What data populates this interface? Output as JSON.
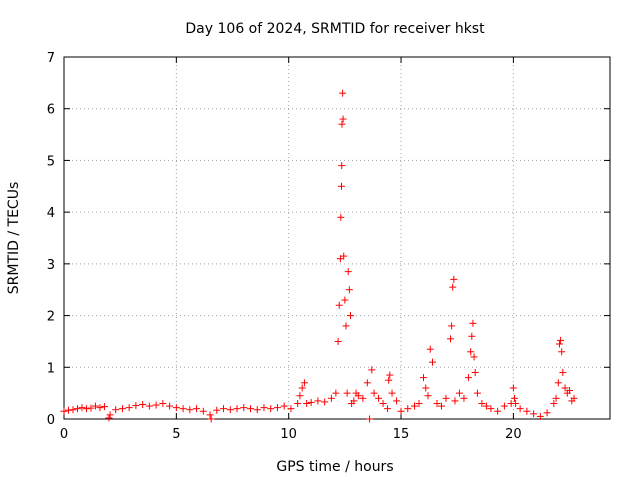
{
  "chart_data": {
    "type": "scatter",
    "title": "Day 106 of 2024, SRMTID for receiver hkst",
    "xlabel": "GPS time / hours",
    "ylabel": "SRMTID / TECUs",
    "xlim": [
      0,
      24.3
    ],
    "ylim": [
      0,
      7
    ],
    "xticks": [
      0,
      5,
      10,
      15,
      20
    ],
    "yticks": [
      0,
      1,
      2,
      3,
      4,
      5,
      6,
      7
    ],
    "grid": true,
    "marker": "+",
    "color": "#ff0000",
    "series": [
      {
        "name": "SRMTID",
        "x": [
          0.0,
          0.2,
          0.4,
          0.6,
          0.8,
          1.0,
          1.2,
          1.4,
          1.6,
          1.8,
          2.0,
          2.05,
          2.3,
          2.6,
          2.9,
          3.2,
          3.5,
          3.8,
          4.1,
          4.4,
          4.7,
          5.0,
          5.3,
          5.6,
          5.9,
          6.2,
          6.5,
          6.55,
          6.8,
          7.1,
          7.4,
          7.7,
          8.0,
          8.3,
          8.6,
          8.9,
          9.2,
          9.5,
          9.8,
          10.1,
          10.4,
          10.5,
          10.6,
          10.7,
          10.8,
          11.0,
          11.3,
          11.6,
          11.9,
          12.1,
          12.2,
          12.25,
          12.3,
          12.32,
          12.35,
          12.36,
          12.37,
          12.4,
          12.42,
          12.45,
          12.5,
          12.55,
          12.6,
          12.65,
          12.7,
          12.75,
          12.8,
          12.9,
          13.0,
          13.1,
          13.3,
          13.5,
          13.6,
          13.7,
          13.8,
          14.0,
          14.2,
          14.4,
          14.45,
          14.5,
          14.6,
          14.8,
          15.0,
          15.3,
          15.6,
          15.8,
          16.0,
          16.1,
          16.2,
          16.3,
          16.4,
          16.6,
          16.8,
          17.0,
          17.2,
          17.25,
          17.3,
          17.35,
          17.4,
          17.6,
          17.8,
          18.0,
          18.1,
          18.15,
          18.2,
          18.25,
          18.3,
          18.4,
          18.6,
          18.8,
          19.0,
          19.3,
          19.6,
          19.9,
          20.0,
          20.05,
          20.1,
          20.3,
          20.6,
          20.9,
          21.2,
          21.5,
          21.8,
          21.9,
          22.0,
          22.05,
          22.1,
          22.15,
          22.2,
          22.3,
          22.4,
          22.5,
          22.6,
          22.7
        ],
        "y": [
          0.15,
          0.17,
          0.18,
          0.2,
          0.22,
          0.2,
          0.21,
          0.25,
          0.22,
          0.24,
          0.02,
          0.08,
          0.18,
          0.2,
          0.22,
          0.26,
          0.28,
          0.25,
          0.27,
          0.3,
          0.25,
          0.22,
          0.2,
          0.18,
          0.2,
          0.15,
          0.08,
          0.0,
          0.17,
          0.2,
          0.18,
          0.2,
          0.22,
          0.2,
          0.18,
          0.22,
          0.2,
          0.22,
          0.25,
          0.2,
          0.3,
          0.45,
          0.6,
          0.7,
          0.3,
          0.32,
          0.35,
          0.33,
          0.4,
          0.5,
          1.5,
          2.2,
          3.1,
          3.9,
          4.5,
          4.9,
          5.7,
          6.3,
          5.8,
          3.15,
          2.3,
          1.8,
          0.5,
          2.85,
          2.5,
          2.0,
          0.3,
          0.35,
          0.5,
          0.45,
          0.4,
          0.7,
          0.0,
          0.95,
          0.5,
          0.4,
          0.3,
          0.2,
          0.75,
          0.85,
          0.5,
          0.35,
          0.15,
          0.2,
          0.25,
          0.3,
          0.8,
          0.6,
          0.45,
          1.35,
          1.1,
          0.3,
          0.25,
          0.4,
          1.55,
          1.8,
          2.55,
          2.7,
          0.35,
          0.5,
          0.4,
          0.8,
          1.3,
          1.6,
          1.85,
          1.2,
          0.9,
          0.5,
          0.3,
          0.25,
          0.2,
          0.15,
          0.25,
          0.3,
          0.6,
          0.4,
          0.3,
          0.2,
          0.15,
          0.1,
          0.05,
          0.12,
          0.3,
          0.4,
          0.7,
          1.45,
          1.52,
          1.3,
          0.9,
          0.6,
          0.5,
          0.55,
          0.35,
          0.4
        ]
      }
    ]
  }
}
